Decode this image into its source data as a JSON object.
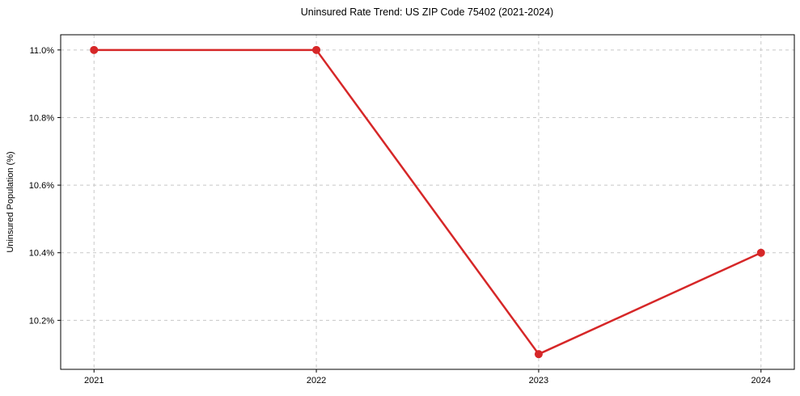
{
  "chart_data": {
    "type": "line",
    "title": "Uninsured Rate Trend: US ZIP Code 75402 (2021-2024)",
    "xlabel": "",
    "ylabel": "Uninsured Population (%)",
    "x": [
      2021,
      2022,
      2023,
      2024
    ],
    "series": [
      {
        "name": "Uninsured rate",
        "values": [
          11.0,
          11.0,
          10.1,
          10.4
        ]
      }
    ],
    "xticks": [
      2021,
      2022,
      2023,
      2024
    ],
    "xtick_labels": [
      "2021",
      "2022",
      "2023",
      "2024"
    ],
    "yticks": [
      10.2,
      10.4,
      10.6,
      10.8,
      11.0
    ],
    "ytick_labels": [
      "10.2%",
      "10.4%",
      "10.6%",
      "10.8%",
      "11.0%"
    ],
    "xlim": [
      2020.85,
      2024.15
    ],
    "ylim": [
      10.055,
      11.045
    ],
    "grid": true,
    "grid_style": "dashed",
    "grid_color": "#c8c8c8",
    "axis_color": "#000000",
    "line_color": "#d62728",
    "marker": "circle",
    "marker_size": 5,
    "line_width": 2.5,
    "legend": "none",
    "background_color": "#ffffff"
  }
}
